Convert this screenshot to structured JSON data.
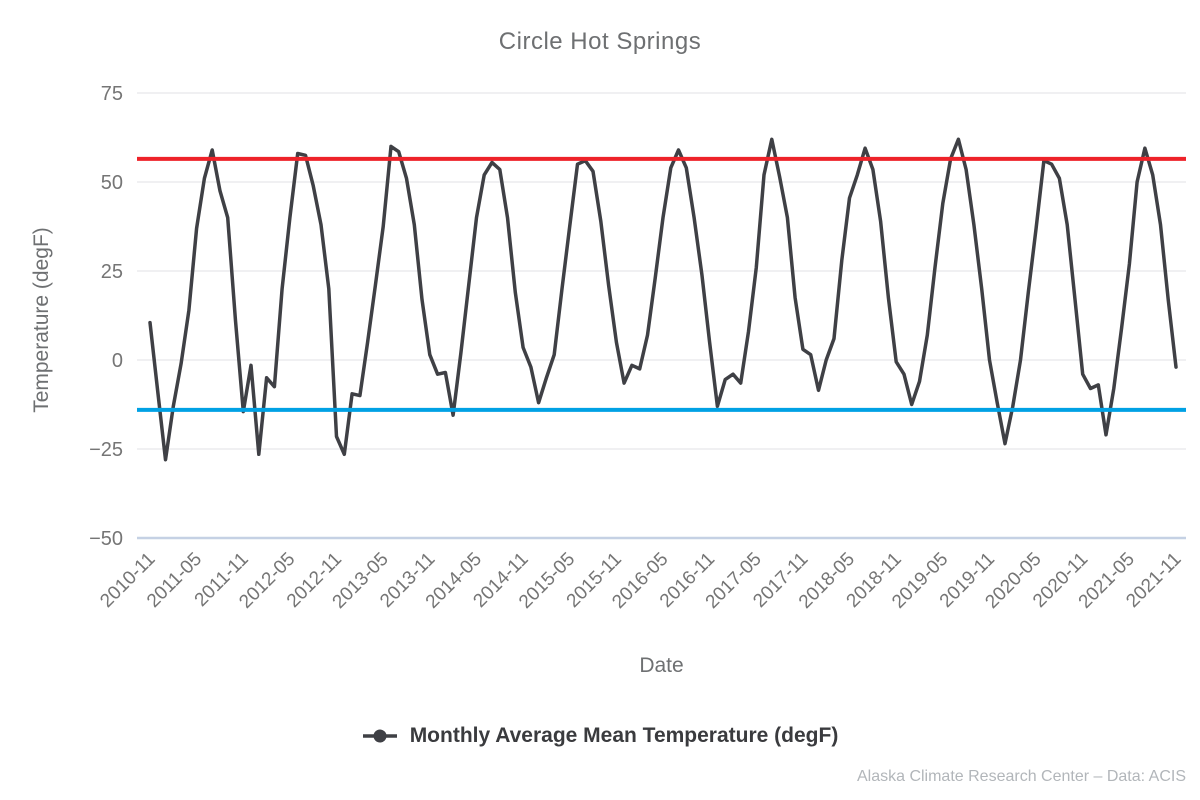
{
  "title": "Circle Hot Springs",
  "footer": {
    "credit": "Alaska Climate Research Center – Data: ACIS"
  },
  "colors": {
    "series_line": "#3f4045",
    "upper_reference_line": "#ee2229",
    "lower_reference_line": "#00a1e4",
    "gridline": "#e8e8ea",
    "bottom_gridline": "#c5d1e4",
    "tick_text": "#757575",
    "muted_text": "#6e7072"
  },
  "chart_data": {
    "type": "line",
    "title": "Circle Hot Springs",
    "xlabel": "Date",
    "ylabel": "Temperature (degF)",
    "ylim": [
      -50,
      75
    ],
    "grid": true,
    "legend_position": "bottom",
    "axis": {
      "y_ticks": [
        75,
        50,
        25,
        0,
        -25,
        -50
      ],
      "y_tick_labels": [
        "75",
        "50",
        "25",
        "0",
        "−25",
        "−50"
      ],
      "x_tick_every": 6,
      "x_tick_labels": [
        "2010-11",
        "2011-05",
        "2011-11",
        "2012-05",
        "2012-11",
        "2013-05",
        "2013-11",
        "2014-05",
        "2014-11",
        "2015-05",
        "2015-11",
        "2016-05",
        "2016-11",
        "2017-05",
        "2017-11",
        "2018-05",
        "2018-11",
        "2019-05",
        "2019-11",
        "2020-05",
        "2020-11",
        "2021-05",
        "2021-11"
      ]
    },
    "reference_lines": [
      {
        "name": "upper-reference-line",
        "value": 56.5,
        "color": "#ee2229"
      },
      {
        "name": "lower-reference-line",
        "value": -14,
        "color": "#00a1e4"
      }
    ],
    "x": [
      "2010-11",
      "2010-12",
      "2011-01",
      "2011-02",
      "2011-03",
      "2011-04",
      "2011-05",
      "2011-06",
      "2011-07",
      "2011-08",
      "2011-09",
      "2011-10",
      "2011-11",
      "2011-12",
      "2012-01",
      "2012-02",
      "2012-03",
      "2012-04",
      "2012-05",
      "2012-06",
      "2012-07",
      "2012-08",
      "2012-09",
      "2012-10",
      "2012-11",
      "2012-12",
      "2013-01",
      "2013-02",
      "2013-03",
      "2013-04",
      "2013-05",
      "2013-06",
      "2013-07",
      "2013-08",
      "2013-09",
      "2013-10",
      "2013-11",
      "2013-12",
      "2014-01",
      "2014-02",
      "2014-03",
      "2014-04",
      "2014-05",
      "2014-06",
      "2014-07",
      "2014-08",
      "2014-09",
      "2014-10",
      "2014-11",
      "2014-12",
      "2015-01",
      "2015-02",
      "2015-03",
      "2015-04",
      "2015-05",
      "2015-06",
      "2015-07",
      "2015-08",
      "2015-09",
      "2015-10",
      "2015-11",
      "2015-12",
      "2016-01",
      "2016-02",
      "2016-03",
      "2016-04",
      "2016-05",
      "2016-06",
      "2016-07",
      "2016-08",
      "2016-09",
      "2016-10",
      "2016-11",
      "2016-12",
      "2017-01",
      "2017-02",
      "2017-03",
      "2017-04",
      "2017-05",
      "2017-06",
      "2017-07",
      "2017-08",
      "2017-09",
      "2017-10",
      "2017-11",
      "2017-12",
      "2018-01",
      "2018-02",
      "2018-03",
      "2018-04",
      "2018-05",
      "2018-06",
      "2018-07",
      "2018-08",
      "2018-09",
      "2018-10",
      "2018-11",
      "2018-12",
      "2019-01",
      "2019-02",
      "2019-03",
      "2019-04",
      "2019-05",
      "2019-06",
      "2019-07",
      "2019-08",
      "2019-09",
      "2019-10",
      "2019-11",
      "2019-12",
      "2020-01",
      "2020-02",
      "2020-03",
      "2020-04",
      "2020-05",
      "2020-06",
      "2020-07",
      "2020-08",
      "2020-09",
      "2020-10",
      "2020-11",
      "2020-12",
      "2021-01",
      "2021-02",
      "2021-03",
      "2021-04",
      "2021-05",
      "2021-06",
      "2021-07",
      "2021-08",
      "2021-09",
      "2021-10",
      "2021-11"
    ],
    "series": [
      {
        "name": "Monthly Average Mean Temperature (degF)",
        "color": "#3f4045",
        "values": [
          10.5,
          -9,
          -28,
          -13,
          -1,
          14,
          37,
          51,
          59,
          47.5,
          40,
          11,
          -14.5,
          -1.5,
          -26.5,
          -5,
          -7.5,
          20,
          40,
          58,
          57.5,
          49,
          38,
          20,
          -21.5,
          -26.5,
          -9.5,
          -10,
          5,
          21,
          37.5,
          60,
          58.5,
          51,
          38,
          17,
          1.5,
          -4,
          -3.5,
          -15.5,
          2,
          21,
          40,
          52,
          55.5,
          53.5,
          40,
          19,
          3.5,
          -2,
          -12,
          -5,
          1.5,
          20,
          37.5,
          55,
          56,
          53,
          39,
          21,
          5,
          -6.5,
          -1.5,
          -2.5,
          7,
          23,
          40,
          54,
          59,
          54,
          40,
          24,
          5,
          -13,
          -5.5,
          -4,
          -6.5,
          8,
          26,
          52,
          62,
          51.5,
          40,
          17.5,
          3,
          1.5,
          -8.5,
          0,
          6,
          28,
          45.5,
          52,
          59.5,
          53.5,
          39,
          17.5,
          -0.5,
          -4,
          -12.5,
          -6,
          7,
          26,
          44,
          56.5,
          62,
          53.5,
          38,
          20,
          0,
          -12,
          -23.5,
          -13,
          0,
          19,
          37,
          56,
          55,
          51,
          38,
          17,
          -4,
          -8,
          -7,
          -21,
          -8,
          9,
          27,
          50,
          59.5,
          52,
          38,
          17,
          -2
        ]
      }
    ]
  }
}
